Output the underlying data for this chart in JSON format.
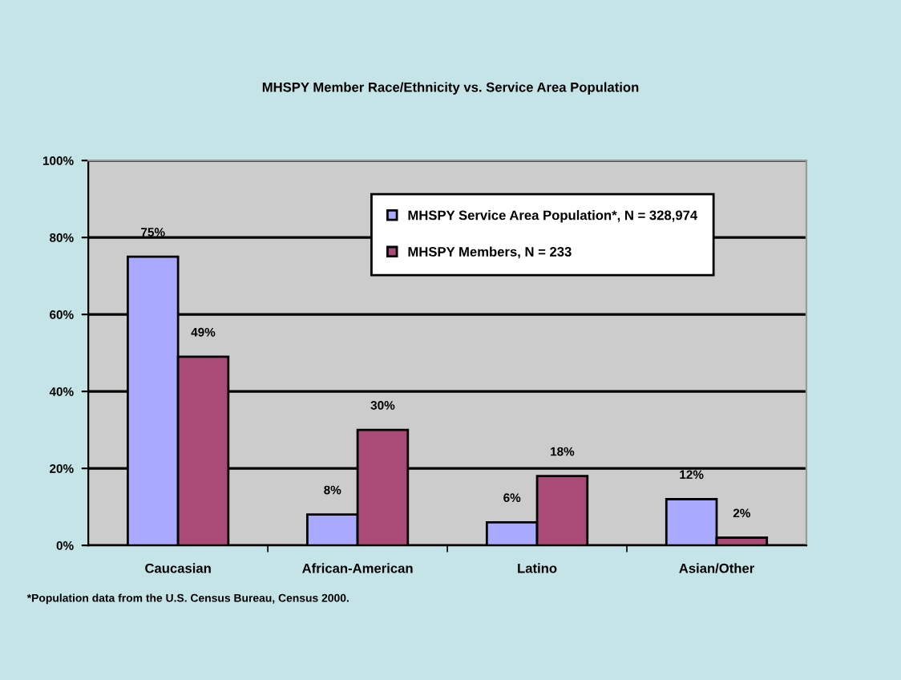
{
  "chart_data": {
    "type": "bar",
    "title": "MHSPY Member Race/Ethnicity vs. Service Area Population",
    "categories": [
      "Caucasian",
      "African-American",
      "Latino",
      "Asian/Other"
    ],
    "series": [
      {
        "name": "MHSPY Service Area Population*, N = 328,974",
        "color": "#a9a9ff",
        "values": [
          75,
          8,
          6,
          12
        ],
        "value_labels": [
          "75%",
          "8%",
          "6%",
          "12%"
        ]
      },
      {
        "name": "MHSPY Members, N = 233",
        "color": "#aa4a76",
        "values": [
          49,
          30,
          18,
          2
        ],
        "value_labels": [
          "49%",
          "30%",
          "18%",
          "2%"
        ]
      }
    ],
    "ylim": [
      0,
      100
    ],
    "yticks": [
      {
        "value": 0,
        "label": "0%"
      },
      {
        "value": 20,
        "label": "20%"
      },
      {
        "value": 40,
        "label": "40%"
      },
      {
        "value": 60,
        "label": "60%"
      },
      {
        "value": 80,
        "label": "80%"
      },
      {
        "value": 100,
        "label": "100%"
      }
    ],
    "grid": "y",
    "legend": "top right",
    "annotations": [
      "*Population data from the U.S. Census Bureau, Census 2000."
    ]
  }
}
